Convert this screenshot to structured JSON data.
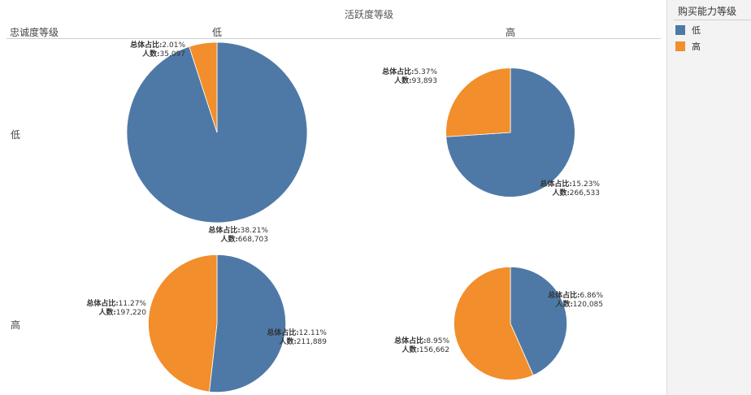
{
  "chart_data": {
    "type": "pie",
    "column_dimension": "活跃度等级",
    "row_dimension": "忠诚度等级",
    "columns": [
      "低",
      "高"
    ],
    "rows": [
      "低",
      "高"
    ],
    "label_keys": {
      "share": "总体占比:",
      "count": "人数:"
    },
    "colors": {
      "低": "#4e79a7",
      "高": "#f28e2b"
    },
    "legend": {
      "title": "购买能力等级",
      "position": "right",
      "items": [
        "低",
        "高"
      ]
    },
    "pies": [
      {
        "row": "低",
        "col": "低",
        "slices": [
          {
            "name": "低",
            "share": "38.21%",
            "count": "668,703",
            "value": 668703
          },
          {
            "name": "高",
            "share": "2.01%",
            "count": "35,097",
            "value": 35097
          }
        ]
      },
      {
        "row": "低",
        "col": "高",
        "slices": [
          {
            "name": "低",
            "share": "15.23%",
            "count": "266,533",
            "value": 266533
          },
          {
            "name": "高",
            "share": "5.37%",
            "count": "93,893",
            "value": 93893
          }
        ]
      },
      {
        "row": "高",
        "col": "低",
        "slices": [
          {
            "name": "低",
            "share": "12.11%",
            "count": "211,889",
            "value": 211889
          },
          {
            "name": "高",
            "share": "11.27%",
            "count": "197,220",
            "value": 197220
          }
        ]
      },
      {
        "row": "高",
        "col": "高",
        "slices": [
          {
            "name": "低",
            "share": "6.86%",
            "count": "120,085",
            "value": 120085
          },
          {
            "name": "高",
            "share": "8.95%",
            "count": "156,662",
            "value": 156662
          }
        ]
      }
    ]
  }
}
